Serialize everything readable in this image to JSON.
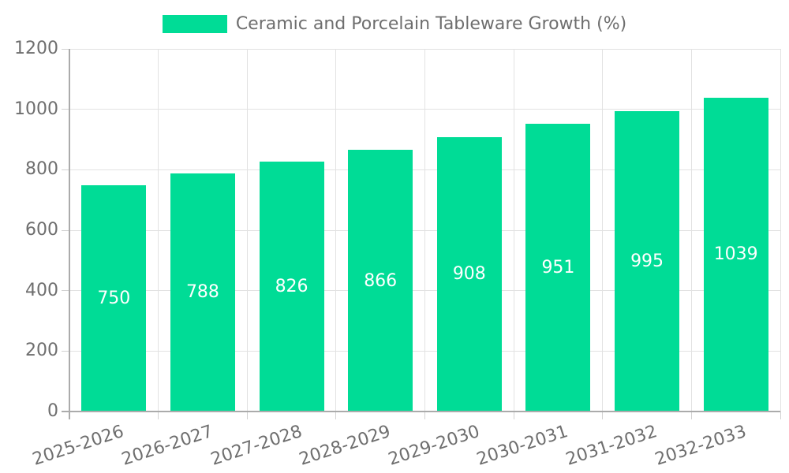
{
  "chart_data": {
    "type": "bar",
    "title": "Ceramic and Porcelain Tableware Growth (%)",
    "legend_position": "top",
    "categories": [
      "2025-2026",
      "2026-2027",
      "2027-2028",
      "2028-2029",
      "2029-2030",
      "2030-2031",
      "2031-2032",
      "2032-2033"
    ],
    "values": [
      750,
      788,
      826,
      866,
      908,
      951,
      995,
      1039
    ],
    "xlabel": "",
    "ylabel": "",
    "ylim": [
      0,
      1200
    ],
    "yticks": [
      0,
      200,
      400,
      600,
      800,
      1000,
      1200
    ],
    "grid": "on",
    "bar_value_labels_visible": true,
    "x_tick_rotation_deg": -18,
    "colors": {
      "bar": "#00DC96",
      "bar_label": "#FFFFFF",
      "axis_line": "#ABABAB",
      "grid_line": "#E2E2E2",
      "tick_mark": "#D2D2D2",
      "tick_label": "#6E6E6E",
      "legend_text": "#6E6E6E",
      "background": "#FFFFFF"
    }
  }
}
